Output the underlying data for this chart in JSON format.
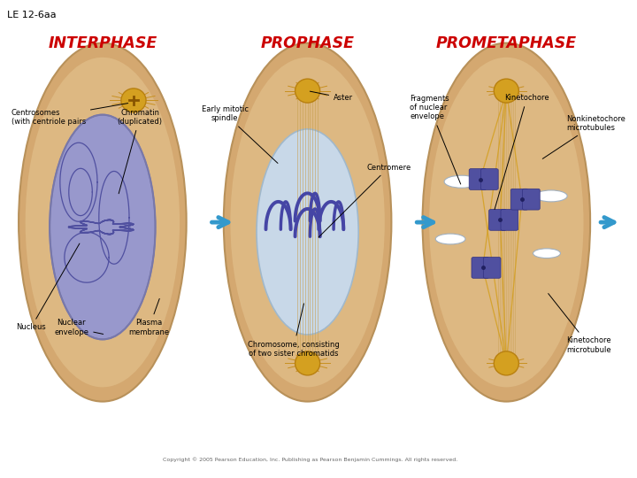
{
  "title": "LE 12-6aa",
  "bg_color": "#ffffff",
  "phases": [
    "INTERPHASE",
    "PROPHASE",
    "PROMETAPHASE"
  ],
  "phase_color": "#cc0000",
  "cell_outer_fc": "#d4a870",
  "cell_outer_ec": "#b8915a",
  "cell_inner_fc": "#ddb882",
  "nucleus_fc1": "#9898cc",
  "nucleus_ec1": "#7878aa",
  "nucleus_fc2": "#c8d8e8",
  "nucleus_ec2": "#a0b8cc",
  "centrosome_fc": "#d4a020",
  "centrosome_ec": "#b88010",
  "centrosome_ray": "#c89020",
  "chromatin_color": "#5050a0",
  "spindle_color": "#c8a050",
  "chrom_color": "#4545a5",
  "frag_fc": "#ffffff",
  "frag_ec": "#a0b0c0",
  "arrow_color": "#3399cc",
  "annotation_fs": 6,
  "copyright": "Copyright © 2005 Pearson Education, Inc. Publishing as Pearson Benjamin Cummings. All rights reserved."
}
